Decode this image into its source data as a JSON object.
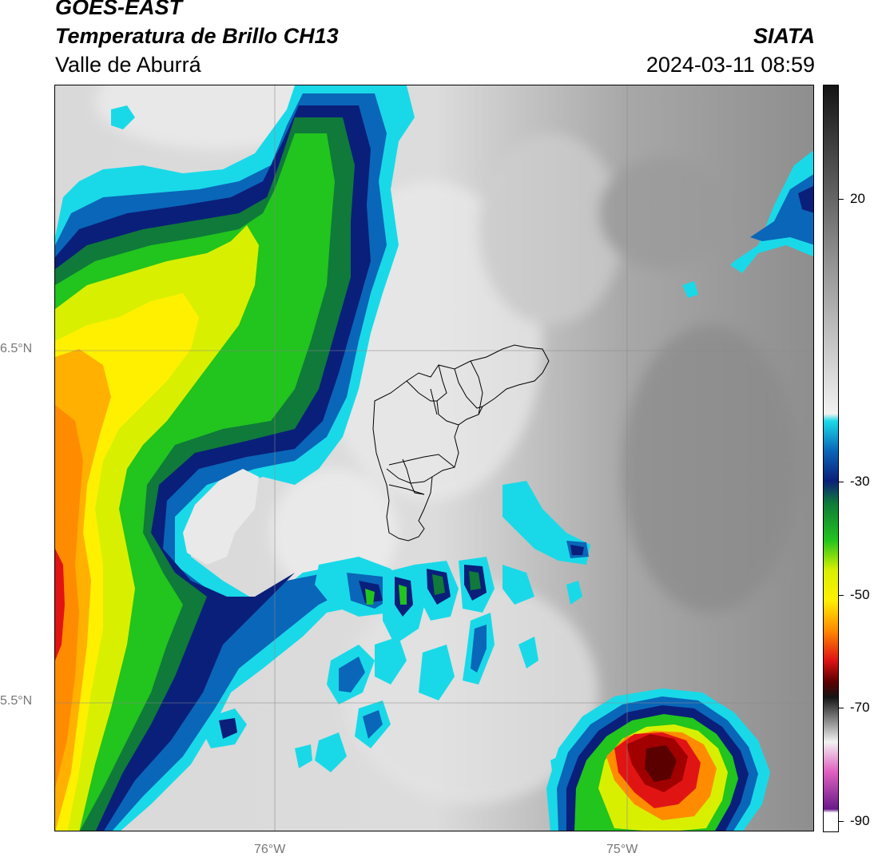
{
  "header": {
    "satellite": "GOES-EAST",
    "product": "Temperatura de Brillo CH13",
    "region": "Valle de Aburrá",
    "organization": "SIATA",
    "datetime": "2024-03-11 08:59"
  },
  "map": {
    "lat_labels": [
      "6.5°N",
      "5.5°N"
    ],
    "lon_labels": [
      "76°W",
      "75°W"
    ]
  },
  "colorbar": {
    "labels": [
      "20",
      "-30",
      "-50",
      "-70",
      "-90"
    ],
    "colors": {
      "warm_dark": "#141414",
      "warm_gray": "#8a8a8a",
      "warm_light": "#f2f2f2",
      "cyan": "#19d9e8",
      "blue": "#0a66b8",
      "navy": "#0a1f7a",
      "green_dark": "#0f7a3a",
      "green": "#22c41e",
      "yellow_green": "#d8f000",
      "yellow": "#fff000",
      "orange": "#ff8c00",
      "red": "#e11414",
      "dark_red": "#5a0000",
      "pink": "#e060c0",
      "purple": "#6a1a8a"
    }
  }
}
